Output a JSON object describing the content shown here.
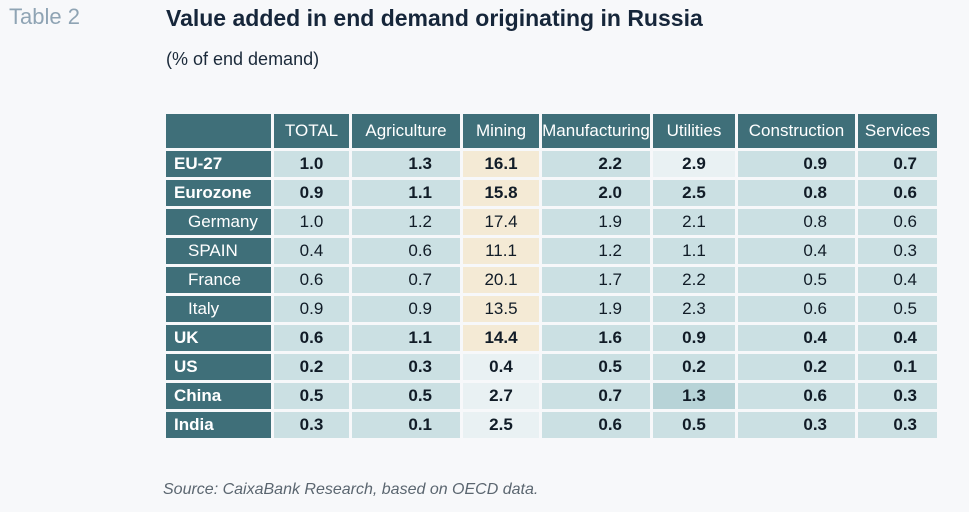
{
  "table_label": "Table 2",
  "title": "Value added in end demand originating in Russia",
  "subtitle": "(% of end demand)",
  "columns": [
    "TOTAL",
    "Agriculture",
    "Mining",
    "Manufacturing",
    "Utilities",
    "Construction",
    "Services"
  ],
  "rows": [
    {
      "label": "EU-27",
      "style": "bold",
      "values": [
        "1.0",
        "1.3",
        "16.1",
        "2.2",
        "2.9",
        "0.9",
        "0.7"
      ]
    },
    {
      "label": "Eurozone",
      "style": "bold",
      "values": [
        "0.9",
        "1.1",
        "15.8",
        "2.0",
        "2.5",
        "0.8",
        "0.6"
      ]
    },
    {
      "label": "Germany",
      "style": "sub",
      "values": [
        "1.0",
        "1.2",
        "17.4",
        "1.9",
        "2.1",
        "0.8",
        "0.6"
      ]
    },
    {
      "label": "SPAIN",
      "style": "sub",
      "values": [
        "0.4",
        "0.6",
        "11.1",
        "1.2",
        "1.1",
        "0.4",
        "0.3"
      ]
    },
    {
      "label": "France",
      "style": "sub",
      "values": [
        "0.6",
        "0.7",
        "20.1",
        "1.7",
        "2.2",
        "0.5",
        "0.4"
      ]
    },
    {
      "label": "Italy",
      "style": "sub",
      "values": [
        "0.9",
        "0.9",
        "13.5",
        "1.9",
        "2.3",
        "0.6",
        "0.5"
      ]
    },
    {
      "label": "UK",
      "style": "bold",
      "values": [
        "0.6",
        "1.1",
        "14.4",
        "1.6",
        "0.9",
        "0.4",
        "0.4"
      ]
    },
    {
      "label": "US",
      "style": "bold",
      "values": [
        "0.2",
        "0.3",
        "0.4",
        "0.5",
        "0.2",
        "0.2",
        "0.1"
      ]
    },
    {
      "label": "China",
      "style": "bold",
      "values": [
        "0.5",
        "0.5",
        "2.7",
        "0.7",
        "1.3",
        "0.6",
        "0.3"
      ]
    },
    {
      "label": "India",
      "style": "bold",
      "values": [
        "0.3",
        "0.1",
        "2.5",
        "0.6",
        "0.5",
        "0.3",
        "0.3"
      ]
    }
  ],
  "source": "Source: CaixaBank Research, based on OECD data.",
  "colors": {
    "header": "#3f6f79",
    "cell": "#cbe0e3",
    "mining": "#f4ead5",
    "title": "#16263a",
    "table_label": "#8fa4b4"
  }
}
